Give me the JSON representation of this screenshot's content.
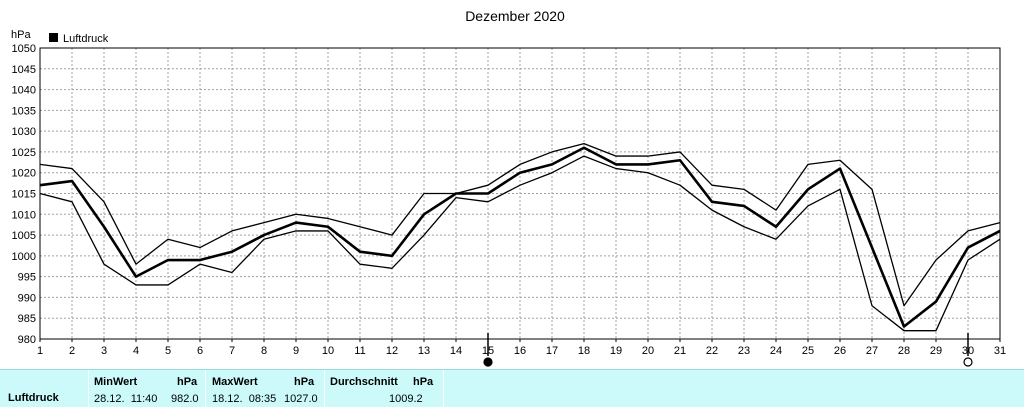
{
  "chart_data": {
    "type": "line",
    "title": "Dezember 2020",
    "ylabel": "hPa",
    "ylim": [
      980,
      1050
    ],
    "y_ticks": [
      980,
      985,
      990,
      995,
      1000,
      1005,
      1010,
      1015,
      1020,
      1025,
      1030,
      1035,
      1040,
      1045,
      1050
    ],
    "x_ticks": [
      1,
      2,
      3,
      4,
      5,
      6,
      7,
      8,
      9,
      10,
      11,
      12,
      13,
      14,
      15,
      16,
      17,
      18,
      19,
      20,
      21,
      22,
      23,
      24,
      25,
      26,
      27,
      28,
      29,
      30,
      31
    ],
    "grid": true,
    "legend": {
      "position": "top-left",
      "entries": [
        "Luftdruck"
      ]
    },
    "moon_phases": [
      {
        "day": 15,
        "phase": "new-moon"
      },
      {
        "day": 30,
        "phase": "full-moon"
      }
    ],
    "series": [
      {
        "name": "Luftdruck",
        "role": "mean",
        "x": [
          1,
          2,
          3,
          4,
          5,
          6,
          7,
          8,
          9,
          10,
          11,
          12,
          13,
          14,
          15,
          16,
          17,
          18,
          19,
          20,
          21,
          22,
          23,
          24,
          25,
          26,
          27,
          28,
          29,
          30,
          31
        ],
        "values": [
          1017,
          1018,
          1007,
          995,
          999,
          999,
          1001,
          1005,
          1008,
          1007,
          1001,
          1000,
          1010,
          1015,
          1015,
          1020,
          1022,
          1026,
          1022,
          1022,
          1023,
          1013,
          1012,
          1007,
          1016,
          1021,
          1002,
          983,
          989,
          1002,
          1006
        ]
      },
      {
        "role": "max",
        "x": [
          1,
          2,
          3,
          4,
          5,
          6,
          7,
          8,
          9,
          10,
          11,
          12,
          13,
          14,
          15,
          16,
          17,
          18,
          19,
          20,
          21,
          22,
          23,
          24,
          25,
          26,
          27,
          28,
          29,
          30,
          31
        ],
        "values": [
          1022,
          1021,
          1013,
          998,
          1004,
          1002,
          1006,
          1008,
          1010,
          1009,
          1007,
          1005,
          1015,
          1015,
          1017,
          1022,
          1025,
          1027,
          1024,
          1024,
          1025,
          1017,
          1016,
          1011,
          1022,
          1023,
          1016,
          988,
          999,
          1006,
          1008
        ]
      },
      {
        "role": "min",
        "x": [
          1,
          2,
          3,
          4,
          5,
          6,
          7,
          8,
          9,
          10,
          11,
          12,
          13,
          14,
          15,
          16,
          17,
          18,
          19,
          20,
          21,
          22,
          23,
          24,
          25,
          26,
          27,
          28,
          29,
          30,
          31
        ],
        "values": [
          1015,
          1013,
          998,
          993,
          993,
          998,
          996,
          1004,
          1006,
          1006,
          998,
          997,
          1005,
          1014,
          1013,
          1017,
          1020,
          1024,
          1021,
          1020,
          1017,
          1011,
          1007,
          1004,
          1012,
          1016,
          988,
          982,
          982,
          999,
          1004
        ]
      }
    ]
  },
  "stats": {
    "series_label": "Luftdruck",
    "min": {
      "label": "MinWert",
      "unit": "hPa",
      "datetime": "28.12.  11:40",
      "value": "982.0"
    },
    "max": {
      "label": "MaxWert",
      "unit": "hPa",
      "datetime": "18.12.  08:35",
      "value": "1027.0"
    },
    "avg": {
      "label": "Durchschnitt",
      "unit": "hPa",
      "value": "1009.2"
    }
  }
}
